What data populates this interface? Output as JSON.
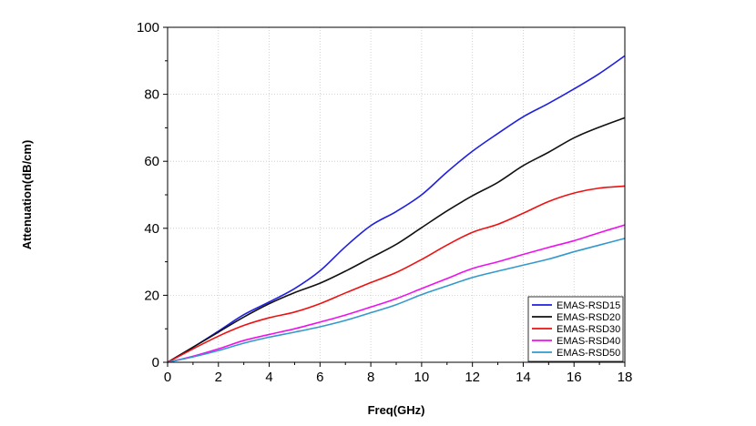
{
  "chart_data": {
    "type": "line",
    "title": "",
    "xlabel": "Freq(GHz)",
    "ylabel": "Attenuation(dB/cm)",
    "xlim": [
      0,
      18
    ],
    "ylim": [
      0,
      100
    ],
    "xticks": [
      0,
      2,
      4,
      6,
      8,
      10,
      12,
      14,
      16,
      18
    ],
    "yticks": [
      0,
      20,
      40,
      60,
      80,
      100
    ],
    "grid": true,
    "legend_position": "bottom-right",
    "x": [
      0,
      1,
      2,
      3,
      4,
      5,
      6,
      7,
      8,
      9,
      10,
      11,
      12,
      13,
      14,
      15,
      16,
      17,
      18
    ],
    "series": [
      {
        "name": "EMAS-RSD15",
        "color": "#1f1fe0",
        "values": [
          0,
          4.5,
          9.3,
          14.2,
          18.0,
          22.0,
          27.3,
          34.5,
          40.8,
          45.0,
          50.0,
          56.8,
          63.0,
          68.3,
          73.3,
          77.3,
          81.6,
          86.2,
          91.5
        ]
      },
      {
        "name": "EMAS-RSD20",
        "color": "#111111",
        "values": [
          0,
          4.5,
          9.0,
          13.5,
          17.5,
          20.8,
          23.6,
          27.2,
          31.2,
          35.2,
          40.2,
          45.2,
          49.7,
          53.7,
          58.7,
          62.7,
          67.0,
          70.2,
          73.0
        ]
      },
      {
        "name": "EMAS-RSD30",
        "color": "#ee1111",
        "values": [
          0,
          4.0,
          7.8,
          11.0,
          13.3,
          15.0,
          17.5,
          20.7,
          23.8,
          26.8,
          30.7,
          35.0,
          38.8,
          41.2,
          44.5,
          48.0,
          50.5,
          52.0,
          52.6
        ]
      },
      {
        "name": "EMAS-RSD40",
        "color": "#ee11ee",
        "values": [
          0,
          1.8,
          4.0,
          6.5,
          8.3,
          10.0,
          12.0,
          14.1,
          16.5,
          19.0,
          22.0,
          25.0,
          28.0,
          30.0,
          32.2,
          34.3,
          36.3,
          38.7,
          41.0
        ]
      },
      {
        "name": "EMAS-RSD50",
        "color": "#3399cc",
        "values": [
          0,
          1.6,
          3.5,
          5.7,
          7.5,
          9.0,
          10.6,
          12.5,
          14.8,
          17.2,
          20.2,
          22.8,
          25.3,
          27.2,
          29.0,
          30.8,
          33.0,
          35.0,
          37.0
        ]
      }
    ]
  }
}
